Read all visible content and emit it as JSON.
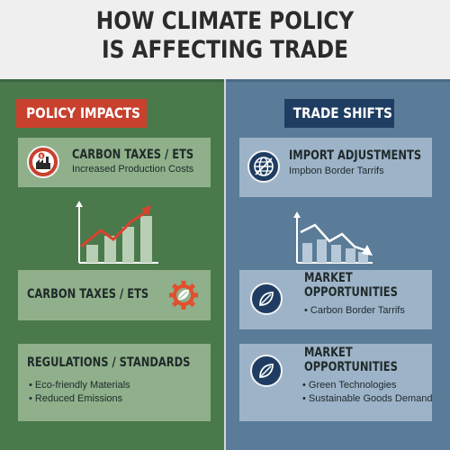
{
  "title": {
    "line1": "HOW CLIMATE POLICY",
    "line2": "IS AFFECTING TRADE"
  },
  "left": {
    "tag": "POLICY IMPACTS",
    "card1": {
      "title": "CARBON TAXES / ETS",
      "subtitle": "Increased Production Costs",
      "icon": "factory-dollar-icon"
    },
    "card2": {
      "title": "CARBON TAXES / ETS",
      "icon": "gear-leaf-icon"
    },
    "card3": {
      "title": "REGULATIONS / STANDARDS",
      "bullets": [
        "• Eco-friendly Materials",
        "• Reduced Emissions"
      ]
    }
  },
  "right": {
    "tag": "TRADE SHIFTS",
    "card1": {
      "title": "IMPORT ADJUSTMENTS",
      "subtitle": "Impbon Border Tarrifs",
      "icon": "globe-icon"
    },
    "card2": {
      "title_line1": "MARKET",
      "title_line2": "OPPORTUNITIES",
      "bullets": [
        "• Carbon Border Tarrifs"
      ],
      "icon": "leaf-icon"
    },
    "card3": {
      "title_line1": "MARKET",
      "title_line2": "OPPORTUNITIES",
      "bullets": [
        "• Green Technologies",
        "• Sustainable Goods Demand"
      ],
      "icon": "leaf-icon"
    }
  },
  "colors": {
    "green_bg": "#4a7a4c",
    "blue_bg": "#5a7c98",
    "red_accent": "#c8402e",
    "navy_accent": "#1f3d62"
  }
}
